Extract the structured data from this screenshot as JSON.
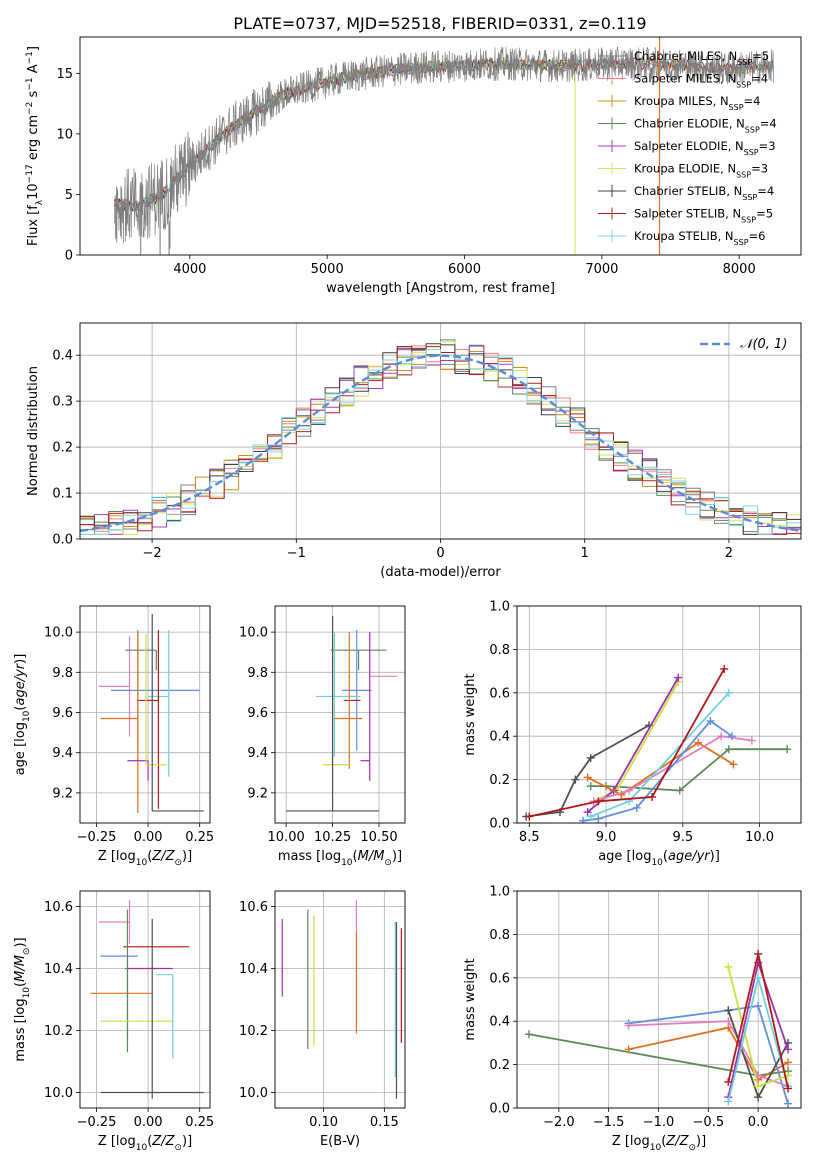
{
  "title": "PLATE=0737, MJD=52518, FIBERID=0331, z=0.119",
  "colors": {
    "Chabrier MILES": "#808080",
    "Salpeter MILES": "#f08080",
    "Kroupa MILES": "#c8901e",
    "Chabrier ELODIE": "#5a8a5a",
    "Salpeter ELODIE": "#a040c0",
    "Kroupa ELODIE": "#d8e060",
    "Chabrier STELIB": "#404040",
    "Salpeter STELIB": "#b02020",
    "Kroupa STELIB": "#80d8e0",
    "normal": "#5b8bd9",
    "c_orange": "#e07020",
    "c_blue": "#6090e0",
    "c_pink": "#e080c0",
    "c_green": "#5a8a5a",
    "c_purple": "#a030b0",
    "c_lime": "#c8e040",
    "c_dark": "#505050",
    "c_red": "#b01818",
    "c_cyan": "#70d0e0"
  },
  "chart_data": [
    {
      "type": "line",
      "panel": "spectrum",
      "xlabel": "wavelength [Angstrom, rest frame]",
      "ylabel": "Flux [f_λ10^-17 erg cm^-2 s^-1 A^-1]",
      "xlim": [
        3200,
        8450
      ],
      "ylim": [
        0,
        18
      ],
      "xticks": [
        "4000",
        "5000",
        "6000",
        "7000",
        "8000"
      ],
      "yticks": [
        "0",
        "5",
        "10",
        "15"
      ],
      "continuum": {
        "x": [
          3450,
          3600,
          3800,
          3950,
          4100,
          4300,
          4500,
          4700,
          4900,
          5100,
          5300,
          5500,
          5700,
          5900,
          6100,
          6300,
          6500,
          6700,
          6900,
          7100,
          7300,
          7500,
          7700,
          7900,
          8100,
          8250
        ],
        "y": [
          4.2,
          4.0,
          5.0,
          6.7,
          8.5,
          10.5,
          12.0,
          13.3,
          14.0,
          14.6,
          15.0,
          15.3,
          15.5,
          15.6,
          15.7,
          15.8,
          15.7,
          15.6,
          15.7,
          15.8,
          15.8,
          15.7,
          15.6,
          15.4,
          15.5,
          15.6
        ]
      },
      "legend": [
        {
          "label": "Chabrier MILES, N_SSP=5",
          "name": "Chabrier MILES",
          "sub": "SSP",
          "n": "=5"
        },
        {
          "label": "Salpeter MILES, N_SSP=4",
          "name": "Salpeter MILES",
          "sub": "SSP",
          "n": "=4"
        },
        {
          "label": "Kroupa MILES, N_SSP=4",
          "name": "Kroupa MILES",
          "sub": "SSP",
          "n": "=4"
        },
        {
          "label": "Chabrier ELODIE, N_SSP=4",
          "name": "Chabrier ELODIE",
          "sub": "SSP",
          "n": "=4"
        },
        {
          "label": "Salpeter ELODIE, N_SSP=3",
          "name": "Salpeter ELODIE",
          "sub": "SSP",
          "n": "=3"
        },
        {
          "label": "Kroupa ELODIE, N_SSP=3",
          "name": "Kroupa ELODIE",
          "sub": "SSP",
          "n": "=3"
        },
        {
          "label": "Chabrier STELIB, N_SSP=4",
          "name": "Chabrier STELIB",
          "sub": "SSP",
          "n": "=4"
        },
        {
          "label": "Salpeter STELIB, N_SSP=5",
          "name": "Salpeter STELIB",
          "sub": "SSP",
          "n": "=5"
        },
        {
          "label": "Kroupa STELIB, N_SSP=6",
          "name": "Kroupa STELIB",
          "sub": "SSP",
          "n": "=6"
        }
      ]
    },
    {
      "type": "line",
      "panel": "residual histogram",
      "xlabel": "(data-model)/error",
      "ylabel": "Normed distribution",
      "xlim": [
        -2.5,
        2.5
      ],
      "ylim": [
        0,
        0.47
      ],
      "xticks": [
        "−2",
        "−1",
        "0",
        "1",
        "2"
      ],
      "yticks": [
        "0.0",
        "0.1",
        "0.2",
        "0.3",
        "0.4"
      ],
      "grid": true,
      "legend": "N(0,1)",
      "legend_position": "top-right",
      "bin_width": 0.1
    },
    {
      "type": "scatter",
      "panel": "age vs Z",
      "xlabel": "Z [log10(Z/Z⊙)]",
      "ylabel": "age [log10(age/yr)]",
      "xlim": [
        -0.33,
        0.3
      ],
      "ylim": [
        9.05,
        10.13
      ],
      "xticks": [
        "−0.25",
        "0.00",
        "0.25"
      ],
      "yticks": [
        "9.2",
        "9.4",
        "9.6",
        "9.8",
        "10.0"
      ],
      "grid": true,
      "points": [
        {
          "c": "c_pink",
          "x": -0.09,
          "xerr": [
            0.15,
            0.0
          ],
          "y": 9.73,
          "yerr": [
            0.25,
            0.25
          ]
        },
        {
          "c": "c_blue",
          "x": -0.05,
          "xerr": [
            0.13,
            0.3
          ],
          "y": 9.71,
          "yerr": [
            0.3,
            0.3
          ]
        },
        {
          "c": "c_green",
          "x": 0.04,
          "xerr": [
            0.15,
            0.0
          ],
          "y": 9.91,
          "yerr": [
            0.1,
            0.0
          ]
        },
        {
          "c": "c_cyan",
          "x": 0.1,
          "xerr": [
            0.1,
            0.0
          ],
          "y": 9.68,
          "yerr": [
            0.4,
            0.33
          ]
        },
        {
          "c": "c_red",
          "x": 0.05,
          "xerr": [
            0.1,
            0.0
          ],
          "y": 9.66,
          "yerr": [
            0.54,
            0.35
          ]
        },
        {
          "c": "c_orange",
          "x": -0.05,
          "xerr": [
            0.18,
            0.0
          ],
          "y": 9.57,
          "yerr": [
            0.47,
            0.43
          ]
        },
        {
          "c": "c_purple",
          "x": 0.0,
          "xerr": [
            0.1,
            0.0
          ],
          "y": 9.36,
          "yerr": [
            0.1,
            0.0
          ]
        },
        {
          "c": "c_lime",
          "x": -0.01,
          "xerr": [
            0.0,
            0.1
          ],
          "y": 9.34,
          "yerr": [
            0.0,
            0.65
          ]
        },
        {
          "c": "c_dark",
          "x": 0.02,
          "xerr": [
            0.0,
            0.25
          ],
          "y": 9.11,
          "yerr": [
            0.0,
            0.98
          ]
        }
      ]
    },
    {
      "type": "scatter",
      "panel": "age vs mass",
      "xlabel": "mass [log10(M/M⊙)]",
      "ylabel": "",
      "xlim": [
        9.94,
        10.64
      ],
      "ylim": [
        9.05,
        10.13
      ],
      "xticks": [
        "10.00",
        "10.25",
        "10.50"
      ],
      "yticks": [
        "9.2",
        "9.4",
        "9.6",
        "9.8",
        "10.0"
      ],
      "grid": true,
      "points": [
        {
          "c": "c_green",
          "x": 10.39,
          "xerr": [
            0.15,
            0.15
          ],
          "y": 9.91,
          "yerr": [
            0.1,
            0.0
          ]
        },
        {
          "c": "c_pink",
          "x": 10.55,
          "xerr": [
            0.1,
            0.05
          ],
          "y": 9.78,
          "yerr": [
            0.0,
            0.0
          ]
        },
        {
          "c": "c_blue",
          "x": 10.38,
          "xerr": [
            0.08,
            0.08
          ],
          "y": 9.71,
          "yerr": [
            0.3,
            0.3
          ]
        },
        {
          "c": "c_cyan",
          "x": 10.26,
          "xerr": [
            0.1,
            0.14
          ],
          "y": 9.68,
          "yerr": [
            0.3,
            0.32
          ]
        },
        {
          "c": "c_red",
          "x": 10.4,
          "xerr": [
            0.09,
            0.0
          ],
          "y": 9.66,
          "yerr": [
            0.0,
            0.0
          ]
        },
        {
          "c": "c_orange",
          "x": 10.34,
          "xerr": [
            0.08,
            0.07
          ],
          "y": 9.57,
          "yerr": [
            0.25,
            0.43
          ]
        },
        {
          "c": "c_purple",
          "x": 10.45,
          "xerr": [
            0.05,
            0.0
          ],
          "y": 9.36,
          "yerr": [
            0.1,
            0.64
          ]
        },
        {
          "c": "c_lime",
          "x": 10.25,
          "xerr": [
            0.05,
            0.1
          ],
          "y": 9.34,
          "yerr": [
            0.0,
            0.65
          ]
        },
        {
          "c": "c_dark",
          "x": 10.25,
          "xerr": [
            0.25,
            0.25
          ],
          "y": 9.11,
          "yerr": [
            0.0,
            0.97
          ]
        }
      ]
    },
    {
      "type": "line",
      "panel": "mass weight vs age",
      "xlabel": "age [log10(age/yr)]",
      "ylabel": "mass weight",
      "xlim": [
        8.42,
        10.27
      ],
      "ylim": [
        0,
        1
      ],
      "xticks": [
        "8.5",
        "9.0",
        "9.5",
        "10.0"
      ],
      "yticks": [
        "0.0",
        "0.2",
        "0.4",
        "0.6",
        "0.8",
        "1.0"
      ],
      "grid": true,
      "series": [
        {
          "c": "c_dark",
          "x": [
            8.48,
            8.7,
            8.8,
            8.9,
            9.28
          ],
          "y": [
            0.03,
            0.05,
            0.2,
            0.3,
            0.45
          ]
        },
        {
          "c": "c_green",
          "x": [
            8.9,
            9.0,
            9.48,
            9.8,
            10.18
          ],
          "y": [
            0.17,
            0.17,
            0.15,
            0.34,
            0.34
          ]
        },
        {
          "c": "c_lime",
          "x": [
            8.92,
            9.07,
            9.47
          ],
          "y": [
            0.1,
            0.15,
            0.65
          ]
        },
        {
          "c": "c_purple",
          "x": [
            8.88,
            9.05,
            9.47
          ],
          "y": [
            0.05,
            0.15,
            0.67
          ]
        },
        {
          "c": "c_orange",
          "x": [
            8.88,
            9.1,
            9.6,
            9.83
          ],
          "y": [
            0.21,
            0.13,
            0.37,
            0.27
          ]
        },
        {
          "c": "c_pink",
          "x": [
            8.92,
            9.15,
            9.75,
            9.95
          ],
          "y": [
            0.1,
            0.15,
            0.4,
            0.38
          ]
        },
        {
          "c": "c_blue",
          "x": [
            8.85,
            8.95,
            9.2,
            9.68,
            9.82
          ],
          "y": [
            0.01,
            0.02,
            0.07,
            0.47,
            0.4
          ]
        },
        {
          "c": "c_cyan",
          "x": [
            8.9,
            9.15,
            9.8
          ],
          "y": [
            0.03,
            0.1,
            0.6
          ]
        },
        {
          "c": "c_red",
          "x": [
            8.5,
            8.95,
            9.3,
            9.77
          ],
          "y": [
            0.03,
            0.1,
            0.12,
            0.71
          ]
        }
      ]
    },
    {
      "type": "scatter",
      "panel": "mass vs Z",
      "xlabel": "Z [log10(Z/Z⊙)]",
      "ylabel": "mass [log10(M/M⊙)]",
      "xlim": [
        -0.33,
        0.3
      ],
      "ylim": [
        9.95,
        10.65
      ],
      "xticks": [
        "−0.25",
        "0.00",
        "0.25"
      ],
      "yticks": [
        "10.0",
        "10.2",
        "10.4",
        "10.6"
      ],
      "grid": true,
      "points": [
        {
          "c": "c_pink",
          "x": -0.09,
          "xerr": [
            0.15,
            0.0
          ],
          "y": 10.55,
          "yerr": [
            0.07,
            0.07
          ]
        },
        {
          "c": "c_red",
          "x": 0.05,
          "xerr": [
            0.17,
            0.15
          ],
          "y": 10.47,
          "yerr": [
            0.0,
            0.0
          ]
        },
        {
          "c": "c_blue",
          "x": -0.1,
          "xerr": [
            0.13,
            0.05
          ],
          "y": 10.44,
          "yerr": [
            0.26,
            0.0
          ]
        },
        {
          "c": "c_purple",
          "x": 0.01,
          "xerr": [
            0.12,
            0.11
          ],
          "y": 10.4,
          "yerr": [
            0.0,
            0.0
          ]
        },
        {
          "c": "c_cyan",
          "x": 0.12,
          "xerr": [
            0.08,
            0.0
          ],
          "y": 10.38,
          "yerr": [
            0.27,
            0.0
          ]
        },
        {
          "c": "c_orange",
          "x": -0.1,
          "xerr": [
            0.18,
            0.12
          ],
          "y": 10.32,
          "yerr": [
            0.0,
            0.0
          ]
        },
        {
          "c": "c_green",
          "x": -0.1,
          "xerr": [
            0.0,
            0.0
          ],
          "y": 10.4,
          "yerr": [
            0.27,
            0.19
          ]
        },
        {
          "c": "c_lime",
          "x": -0.1,
          "xerr": [
            0.13,
            0.22
          ],
          "y": 10.23,
          "yerr": [
            0.0,
            0.0
          ]
        },
        {
          "c": "c_dark",
          "x": 0.02,
          "xerr": [
            0.25,
            0.25
          ],
          "y": 10.0,
          "yerr": [
            0.02,
            0.56
          ]
        }
      ]
    },
    {
      "type": "scatter",
      "panel": "mass vs E(B-V)",
      "xlabel": "E(B-V)",
      "ylabel": "",
      "xlim": [
        0.06,
        0.167
      ],
      "ylim": [
        9.95,
        10.65
      ],
      "xticks": [
        "0.10",
        "0.15"
      ],
      "yticks": [
        "10.0",
        "10.2",
        "10.4",
        "10.6"
      ],
      "grid": true,
      "points": [
        {
          "c": "c_purple",
          "x": 0.066,
          "y": 10.45,
          "yerr": [
            0.14,
            0.11
          ]
        },
        {
          "c": "c_green",
          "x": 0.087,
          "y": 10.35,
          "yerr": [
            0.21,
            0.24
          ]
        },
        {
          "c": "c_lime",
          "x": 0.092,
          "y": 10.35,
          "yerr": [
            0.2,
            0.22
          ]
        },
        {
          "c": "c_pink",
          "x": 0.127,
          "y": 10.55,
          "yerr": [
            0.03,
            0.07
          ]
        },
        {
          "c": "c_orange",
          "x": 0.127,
          "y": 10.35,
          "yerr": [
            0.16,
            0.17
          ]
        },
        {
          "c": "c_cyan",
          "x": 0.159,
          "y": 10.3,
          "yerr": [
            0.25,
            0.25
          ]
        },
        {
          "c": "c_dark",
          "x": 0.16,
          "y": 10.2,
          "yerr": [
            0.22,
            0.35
          ]
        },
        {
          "c": "c_red",
          "x": 0.164,
          "y": 10.35,
          "yerr": [
            0.19,
            0.18
          ]
        }
      ]
    },
    {
      "type": "line",
      "panel": "mass weight vs Z",
      "xlabel": "Z [log10(Z/Z⊙)]",
      "ylabel": "mass weight",
      "xlim": [
        -2.42,
        0.43
      ],
      "ylim": [
        0,
        1
      ],
      "xticks": [
        "−2.0",
        "−1.5",
        "−1.0",
        "−0.5",
        "0.0"
      ],
      "yticks": [
        "0.0",
        "0.2",
        "0.4",
        "0.6",
        "0.8",
        "1.0"
      ],
      "grid": true,
      "series": [
        {
          "c": "c_green",
          "x": [
            -2.3,
            0.0,
            0.3
          ],
          "y": [
            0.34,
            0.15,
            0.17
          ]
        },
        {
          "c": "c_orange",
          "x": [
            -1.3,
            -0.3,
            0.0,
            0.3
          ],
          "y": [
            0.27,
            0.37,
            0.13,
            0.21
          ]
        },
        {
          "c": "c_blue",
          "x": [
            -1.3,
            -0.3,
            0.0,
            0.3
          ],
          "y": [
            0.39,
            0.45,
            0.47,
            0.02
          ]
        },
        {
          "c": "c_pink",
          "x": [
            -1.3,
            -0.3,
            0.0,
            0.3
          ],
          "y": [
            0.38,
            0.4,
            0.15,
            0.1
          ]
        },
        {
          "c": "c_dark",
          "x": [
            -0.3,
            0.0,
            0.3
          ],
          "y": [
            0.45,
            0.05,
            0.3
          ]
        },
        {
          "c": "c_lime",
          "x": [
            -0.3,
            0.0,
            0.3
          ],
          "y": [
            0.65,
            0.1,
            0.15
          ]
        },
        {
          "c": "c_purple",
          "x": [
            -0.3,
            0.0,
            0.3
          ],
          "y": [
            0.05,
            0.67,
            0.27
          ]
        },
        {
          "c": "c_cyan",
          "x": [
            -0.3,
            0.0,
            0.3
          ],
          "y": [
            0.03,
            0.6,
            0.1
          ]
        },
        {
          "c": "c_red",
          "x": [
            -0.3,
            0.0,
            0.3
          ],
          "y": [
            0.12,
            0.71,
            0.09
          ]
        }
      ]
    }
  ]
}
